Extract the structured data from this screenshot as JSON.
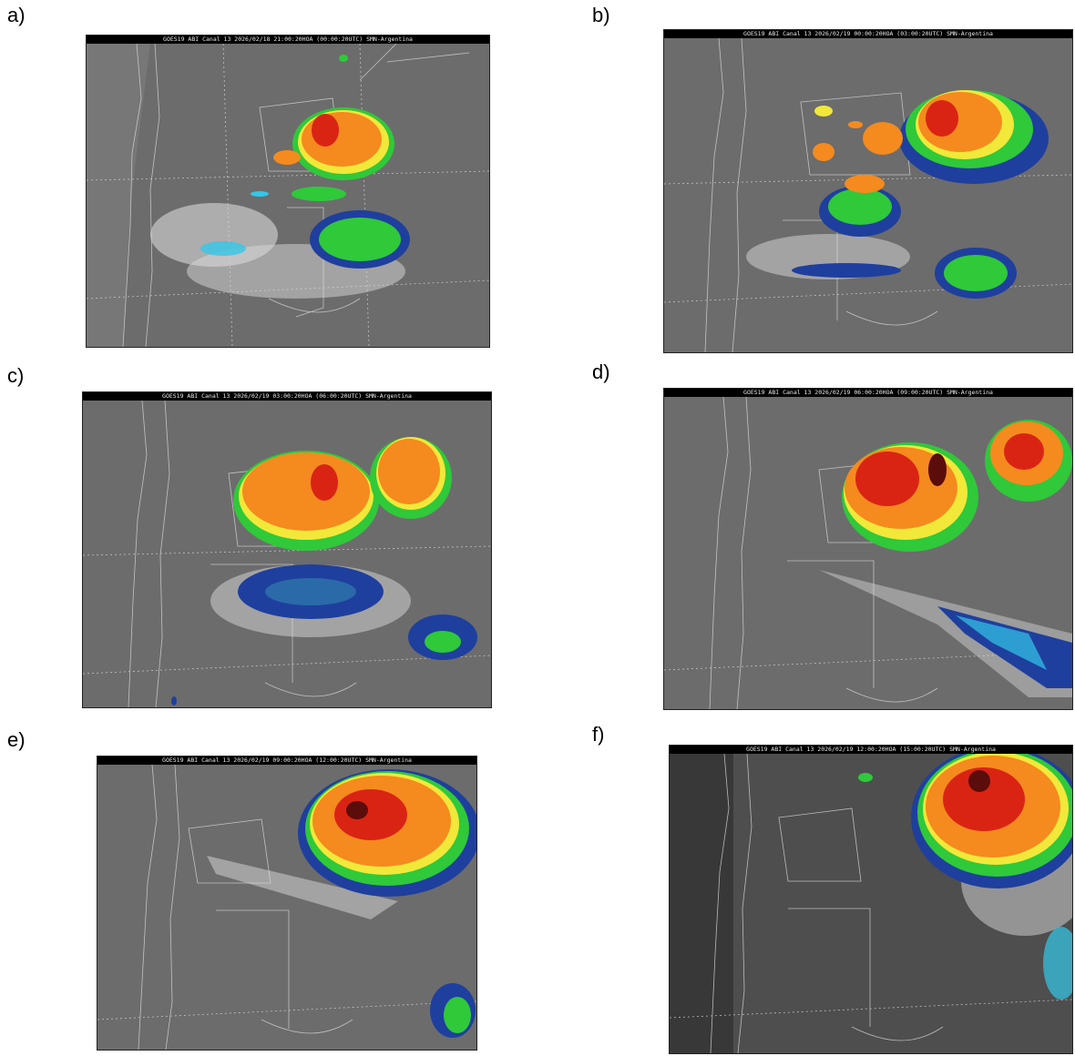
{
  "palette": {
    "background_gray": "#6e6e6e",
    "coast_gray": "#8a8a8a",
    "cloud_white": "#e6e6e6",
    "cyan": "#33c7e8",
    "blue": "#1f3f9e",
    "green": "#2fc93a",
    "yellow": "#f2e83a",
    "orange": "#f58a1e",
    "red": "#d92414",
    "dark_red": "#5a0d0a"
  },
  "panels": [
    {
      "label": "a)",
      "header": "GOES19 ABI Canal 13 2026/02/18 21:00:20HOA (00:00:20UTC) SMN-Argentina"
    },
    {
      "label": "b)",
      "header": "GOES19 ABI Canal 13 2026/02/19 00:00:20HOA (03:00:20UTC) SMN-Argentina"
    },
    {
      "label": "c)",
      "header": "GOES19 ABI Canal 13 2026/02/19 03:00:20HOA (06:00:20UTC) SMN-Argentina"
    },
    {
      "label": "d)",
      "header": "GOES19 ABI Canal 13 2026/02/19 06:00:20HOA (09:00:20UTC) SMN-Argentina"
    },
    {
      "label": "e)",
      "header": "GOES19 ABI Canal 13 2026/02/19 09:00:20HOA (12:00:20UTC) SMN-Argentina"
    },
    {
      "label": "f)",
      "header": "GOES19 ABI Canal 13 2026/02/19 12:00:20HOA (15:00:20UTC) SMN-Argentina"
    }
  ]
}
